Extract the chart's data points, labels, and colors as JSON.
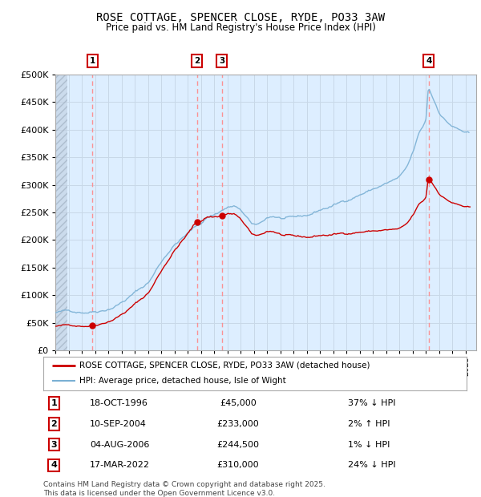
{
  "title": "ROSE COTTAGE, SPENCER CLOSE, RYDE, PO33 3AW",
  "subtitle": "Price paid vs. HM Land Registry's House Price Index (HPI)",
  "sale_times": [
    1996.792,
    2004.692,
    2006.583,
    2022.208
  ],
  "sale_prices": [
    45000,
    233000,
    244500,
    310000
  ],
  "sale_labels": [
    "1",
    "2",
    "3",
    "4"
  ],
  "sale_info": [
    {
      "label": "1",
      "date": "18-OCT-1996",
      "price": "£45,000",
      "pct": "37% ↓ HPI"
    },
    {
      "label": "2",
      "date": "10-SEP-2004",
      "price": "£233,000",
      "pct": "2% ↑ HPI"
    },
    {
      "label": "3",
      "date": "04-AUG-2006",
      "price": "£244,500",
      "pct": "1% ↓ HPI"
    },
    {
      "label": "4",
      "date": "17-MAR-2022",
      "price": "£310,000",
      "pct": "24% ↓ HPI"
    }
  ],
  "legend_line1": "ROSE COTTAGE, SPENCER CLOSE, RYDE, PO33 3AW (detached house)",
  "legend_line2": "HPI: Average price, detached house, Isle of Wight",
  "footer": "Contains HM Land Registry data © Crown copyright and database right 2025.\nThis data is licensed under the Open Government Licence v3.0.",
  "ylim": [
    0,
    500000
  ],
  "line_color_red": "#cc0000",
  "line_color_blue": "#7ab0d4",
  "box_edge_color": "#cc0000",
  "vline_color": "#ff8888",
  "grid_color": "#c8d8e8",
  "bg_color_chart": "#ddeeff",
  "hatch_color": "#c0cfe0"
}
